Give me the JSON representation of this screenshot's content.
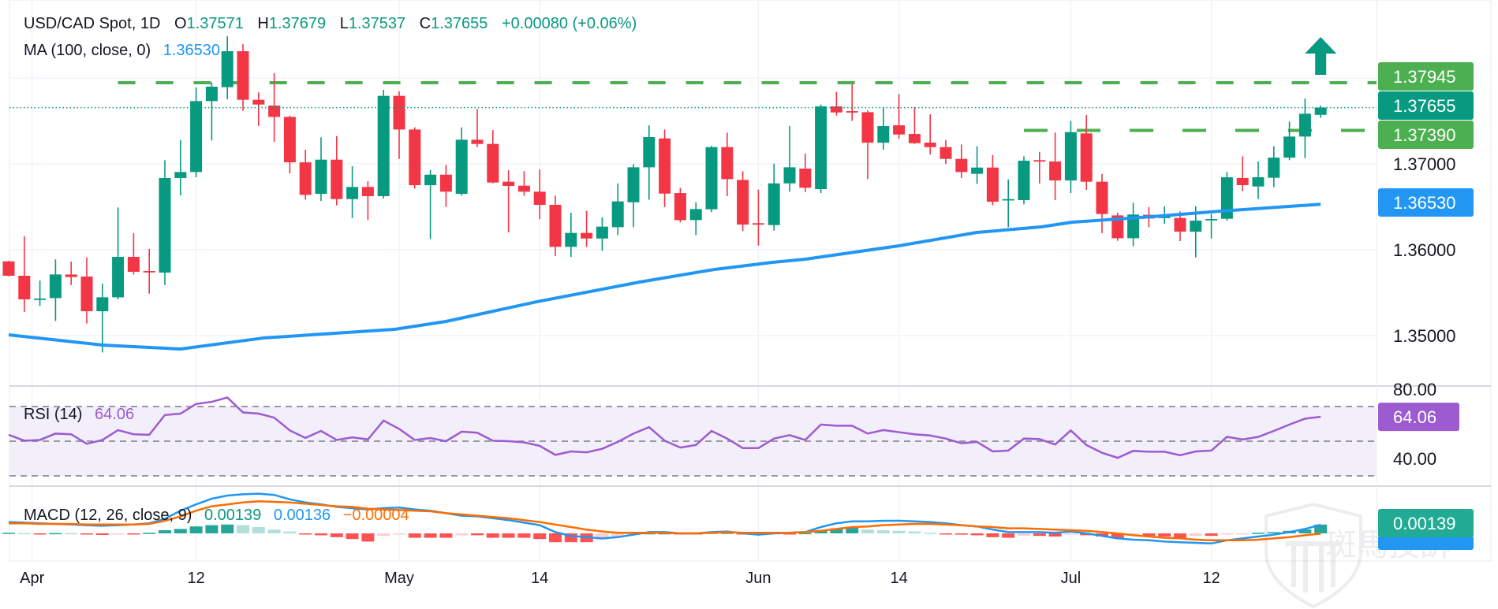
{
  "header": {
    "symbol": "USD/CAD Spot, 1D",
    "o_label": "O",
    "o_value": "1.37571",
    "h_label": "H",
    "h_value": "1.37679",
    "l_label": "L",
    "l_value": "1.37537",
    "c_label": "C",
    "c_value": "1.37655",
    "change": "+0.00080 (+0.06%)",
    "ma_label": "MA (100, close, 0)",
    "ma_value": "1.36530"
  },
  "colors": {
    "up": "#089981",
    "down": "#f23645",
    "ma": "#2196f3",
    "level": "#4caf50",
    "rsi": "#9c5bd0",
    "macd": "#2196f3",
    "signal": "#ff6d00",
    "hist_up_strong": "#26a69a",
    "hist_up_weak": "#b2dfdb",
    "hist_down_strong": "#ff5252",
    "hist_down_weak": "#ffcdd2"
  },
  "chart_data": [
    {
      "type": "candlestick",
      "title": "USD/CAD Spot, 1D",
      "ylim": [
        1.345,
        1.387
      ],
      "yticks": [
        "1.37000",
        "1.36000",
        "1.35000"
      ],
      "ytick_values": [
        1.37,
        1.36,
        1.35
      ],
      "xticks": [
        {
          "label": "Apr",
          "index": 1.5
        },
        {
          "label": "12",
          "index": 12
        },
        {
          "label": "May",
          "index": 25
        },
        {
          "label": "14",
          "index": 34
        },
        {
          "label": "Jun",
          "index": 48
        },
        {
          "label": "14",
          "index": 57
        },
        {
          "label": "Jul",
          "index": 68
        },
        {
          "label": "12",
          "index": 77
        }
      ],
      "ohlc": [
        [
          1.35865,
          1.3587,
          1.3569,
          1.35697
        ],
        [
          1.35697,
          1.36156,
          1.35275,
          1.35422
        ],
        [
          1.35425,
          1.35642,
          1.35345,
          1.35432
        ],
        [
          1.35437,
          1.35887,
          1.35171,
          1.35712
        ],
        [
          1.35712,
          1.35862,
          1.3559,
          1.35682
        ],
        [
          1.35688,
          1.35911,
          1.35141,
          1.35284
        ],
        [
          1.35284,
          1.35605,
          1.34804,
          1.35446
        ],
        [
          1.35446,
          1.36492,
          1.35422,
          1.35917
        ],
        [
          1.35917,
          1.36192,
          1.35712,
          1.35743
        ],
        [
          1.35752,
          1.36009,
          1.35489,
          1.35743
        ],
        [
          1.35734,
          1.37043,
          1.3559,
          1.36835
        ],
        [
          1.36835,
          1.37278,
          1.36633,
          1.36905
        ],
        [
          1.36905,
          1.3789,
          1.36844,
          1.37731
        ],
        [
          1.37731,
          1.37945,
          1.37272,
          1.37899
        ],
        [
          1.37893,
          1.38486,
          1.37752,
          1.38312
        ],
        [
          1.38312,
          1.38394,
          1.37617,
          1.37746
        ],
        [
          1.37746,
          1.37832,
          1.3744,
          1.37691
        ],
        [
          1.37679,
          1.38058,
          1.37257,
          1.37547
        ],
        [
          1.37547,
          1.3756,
          1.3689,
          1.37018
        ],
        [
          1.37018,
          1.37165,
          1.36584,
          1.36639
        ],
        [
          1.36651,
          1.37309,
          1.36569,
          1.37049
        ],
        [
          1.37049,
          1.37324,
          1.36517,
          1.3659
        ],
        [
          1.3659,
          1.36972,
          1.3637,
          1.36731
        ],
        [
          1.36731,
          1.36798,
          1.36345,
          1.36624
        ],
        [
          1.36624,
          1.37862,
          1.36596,
          1.37792
        ],
        [
          1.37792,
          1.37844,
          1.37058,
          1.374
        ],
        [
          1.374,
          1.37425,
          1.36712,
          1.36752
        ],
        [
          1.36752,
          1.36929,
          1.36125,
          1.36874
        ],
        [
          1.36874,
          1.36988,
          1.36498,
          1.36676
        ],
        [
          1.36651,
          1.37425,
          1.3663,
          1.37281
        ],
        [
          1.37281,
          1.37639,
          1.37195,
          1.37232
        ],
        [
          1.37232,
          1.37394,
          1.36774,
          1.36783
        ],
        [
          1.36792,
          1.36926,
          1.36202,
          1.36743
        ],
        [
          1.36746,
          1.36914,
          1.3663,
          1.36676
        ],
        [
          1.36676,
          1.36935,
          1.36355,
          1.36523
        ],
        [
          1.36523,
          1.3663,
          1.35926,
          1.36034
        ],
        [
          1.36034,
          1.36431,
          1.35917,
          1.36196
        ],
        [
          1.36196,
          1.36452,
          1.36034,
          1.36131
        ],
        [
          1.36131,
          1.36376,
          1.35988,
          1.36269
        ],
        [
          1.36263,
          1.36773,
          1.36171,
          1.36563
        ],
        [
          1.36553,
          1.36997,
          1.36263,
          1.3696
        ],
        [
          1.3696,
          1.37449,
          1.36584,
          1.37312
        ],
        [
          1.37296,
          1.374,
          1.36498,
          1.36654
        ],
        [
          1.3666,
          1.36721,
          1.36318,
          1.36345
        ],
        [
          1.36345,
          1.36553,
          1.36171,
          1.36474
        ],
        [
          1.36471,
          1.37211,
          1.36437,
          1.37195
        ],
        [
          1.37195,
          1.37364,
          1.36624,
          1.36822
        ],
        [
          1.36813,
          1.36914,
          1.36217,
          1.36293
        ],
        [
          1.36309,
          1.367,
          1.36049,
          1.36299
        ],
        [
          1.36287,
          1.37003,
          1.36223,
          1.36773
        ],
        [
          1.36773,
          1.3744,
          1.36676,
          1.3696
        ],
        [
          1.36945,
          1.37119,
          1.3667,
          1.36722
        ],
        [
          1.36706,
          1.37691,
          1.3666,
          1.37669
        ],
        [
          1.37669,
          1.37838,
          1.37563,
          1.37599
        ],
        [
          1.37614,
          1.37929,
          1.37501,
          1.37605
        ],
        [
          1.37602,
          1.37624,
          1.36822,
          1.37247
        ],
        [
          1.37247,
          1.37654,
          1.37165,
          1.3744
        ],
        [
          1.37449,
          1.37813,
          1.37293,
          1.37342
        ],
        [
          1.37348,
          1.3766,
          1.37232,
          1.37241
        ],
        [
          1.37247,
          1.37578,
          1.3711,
          1.37195
        ],
        [
          1.37195,
          1.37278,
          1.36997,
          1.37058
        ],
        [
          1.37058,
          1.37226,
          1.36835,
          1.36905
        ],
        [
          1.36884,
          1.37205,
          1.36767,
          1.36957
        ],
        [
          1.36957,
          1.37104,
          1.36517,
          1.36559
        ],
        [
          1.36584,
          1.36819,
          1.36263,
          1.3659
        ],
        [
          1.36578,
          1.37088,
          1.36529,
          1.37037
        ],
        [
          1.37043,
          1.3714,
          1.36773,
          1.37034
        ],
        [
          1.37028,
          1.37364,
          1.36578,
          1.36807
        ],
        [
          1.36807,
          1.37501,
          1.3666,
          1.3737
        ],
        [
          1.37355,
          1.37569,
          1.36697,
          1.36792
        ],
        [
          1.36792,
          1.36884,
          1.36193,
          1.36416
        ],
        [
          1.364,
          1.36431,
          1.36104,
          1.36134
        ],
        [
          1.36134,
          1.36547,
          1.3604,
          1.3641
        ],
        [
          1.36407,
          1.36498,
          1.36263,
          1.36364
        ],
        [
          1.36379,
          1.36507,
          1.36303,
          1.36385
        ],
        [
          1.3637,
          1.36446,
          1.36101,
          1.36211
        ],
        [
          1.36211,
          1.36507,
          1.35911,
          1.36339
        ],
        [
          1.36345,
          1.36416,
          1.36131,
          1.36358
        ],
        [
          1.36361,
          1.36905,
          1.36339,
          1.36844
        ],
        [
          1.36835,
          1.37088,
          1.36682,
          1.36752
        ],
        [
          1.36737,
          1.37027,
          1.3659,
          1.36844
        ],
        [
          1.36838,
          1.37205,
          1.36728,
          1.37073
        ],
        [
          1.37073,
          1.37492,
          1.37043,
          1.37318
        ],
        [
          1.37318,
          1.37761,
          1.37067,
          1.37584
        ],
        [
          1.37571,
          1.37679,
          1.37537,
          1.37655
        ]
      ],
      "ma_100": [
        [
          0,
          1.35009
        ],
        [
          6,
          1.3489
        ],
        [
          11,
          1.34844
        ],
        [
          16.3,
          1.34972
        ],
        [
          24.7,
          1.35073
        ],
        [
          28,
          1.35165
        ],
        [
          33.8,
          1.35394
        ],
        [
          40.4,
          1.35624
        ],
        [
          45.2,
          1.35771
        ],
        [
          48.9,
          1.35853
        ],
        [
          51,
          1.3589
        ],
        [
          57,
          1.36046
        ],
        [
          62,
          1.36202
        ],
        [
          66.1,
          1.36266
        ],
        [
          68.1,
          1.36321
        ],
        [
          73.2,
          1.36385
        ],
        [
          77.6,
          1.3645
        ],
        [
          84,
          1.3653
        ]
      ],
      "levels": [
        {
          "label": "1.37945",
          "value": 1.37945,
          "from_index": 7,
          "style": "dashed"
        },
        {
          "label": "1.37390",
          "value": 1.3739,
          "from_index": 65,
          "style": "dashed"
        }
      ],
      "last_price": {
        "label": "1.37655",
        "value": 1.37655
      },
      "ma_label": {
        "label": "1.36530",
        "value": 1.3653
      },
      "annotation": {
        "type": "up-arrow",
        "index": 84
      }
    },
    {
      "type": "line",
      "title": "RSI (14)",
      "value_label": "64.06",
      "ylim": [
        25,
        82
      ],
      "yticks": [
        "80.00",
        "40.00"
      ],
      "ytick_values": [
        80,
        40
      ],
      "bands": [
        70,
        50,
        30
      ],
      "values": [
        53.7,
        50.3,
        50.7,
        54.4,
        54,
        48.5,
        50.7,
        56.4,
        54,
        53.7,
        65.1,
        65.9,
        71.5,
        72.7,
        75.2,
        66.6,
        65.9,
        63.6,
        56.2,
        51.9,
        55.9,
        50.7,
        52.2,
        51,
        61.9,
        57.1,
        50.7,
        51.8,
        50,
        55.5,
        54.9,
        50.3,
        50,
        49.3,
        47.3,
        42.1,
        44.1,
        43.6,
        45.6,
        49.6,
        54.4,
        58.1,
        50.3,
        46.3,
        47.8,
        55.9,
        51.5,
        46,
        46,
        51.5,
        53.5,
        50.7,
        59.6,
        58.9,
        58.9,
        54.4,
        56.4,
        55.2,
        54,
        53.3,
        51.5,
        48.8,
        49.6,
        44.1,
        44.6,
        51.5,
        51.2,
        48.1,
        56.2,
        47.8,
        43.3,
        40.4,
        44.4,
        43.9,
        43.9,
        41.9,
        44.1,
        44.6,
        52.5,
        51,
        52.5,
        55.9,
        59.6,
        63,
        64.06
      ]
    },
    {
      "type": "bar+line",
      "title": "MACD (12, 26, close, 9)",
      "hist_label": "0.00139",
      "macd_label": "0.00136",
      "signal_label": "−0.00004",
      "axis_box_label": "0.00139",
      "units": "1e-4",
      "macd": [
        18,
        17,
        16,
        15,
        14,
        13,
        12,
        13,
        14,
        16,
        23,
        36,
        46,
        55,
        60,
        62,
        63,
        61,
        54,
        49,
        46,
        42,
        40,
        38,
        40,
        41,
        38,
        36,
        32,
        28,
        27,
        24,
        21,
        17,
        13,
        2,
        -4,
        -6,
        -8,
        -6,
        -2,
        2,
        2,
        0,
        0,
        2,
        3,
        0,
        -2,
        0,
        1,
        2,
        10,
        16,
        19,
        19,
        20,
        20,
        19,
        18,
        16,
        13,
        11,
        6,
        2,
        2,
        2,
        1,
        3,
        0,
        -4,
        -8,
        -10,
        -11,
        -13,
        -14,
        -15,
        -16,
        -11,
        -8,
        -5,
        -2,
        2,
        7,
        13.6
      ],
      "signal": [
        16,
        16,
        15,
        15,
        15,
        14,
        14,
        14,
        14,
        15,
        20,
        27,
        36,
        43,
        46,
        49,
        51,
        50,
        49,
        47,
        45,
        43,
        42,
        39,
        38,
        37,
        36,
        35,
        32,
        30,
        28,
        26,
        24,
        21,
        18,
        14,
        10,
        6,
        3,
        1,
        1,
        1,
        1,
        0,
        0,
        1,
        2,
        1,
        1,
        1,
        1,
        2,
        4,
        7,
        10,
        11,
        13,
        14,
        15,
        15,
        14,
        13,
        11,
        10,
        8,
        8,
        7,
        6,
        5,
        4,
        2,
        0,
        -3,
        -5,
        -7,
        -8,
        -10,
        -11,
        -11,
        -11,
        -10,
        -8,
        -6,
        -3,
        -0.4
      ],
      "histogram": [
        1,
        0.5,
        -0.5,
        0.5,
        0.3,
        -1.5,
        -2.5,
        -0.5,
        -0.5,
        1,
        5,
        7,
        11,
        13,
        14,
        13,
        10,
        6,
        3,
        -0.5,
        -3,
        -6,
        -9,
        -13,
        -4,
        -2,
        -7,
        -7,
        -7,
        -3,
        -3,
        -7,
        -7,
        -7,
        -9,
        -14,
        -14,
        -14,
        -10,
        -6,
        -1,
        0.3,
        0.3,
        -1,
        -1,
        1,
        1,
        -1,
        -1,
        -0.5,
        -0.5,
        0.5,
        5,
        8,
        9,
        6,
        5,
        4,
        3,
        1,
        -0.5,
        -2,
        -3,
        -6,
        -7,
        -4,
        -4,
        -5,
        -1,
        -3,
        -5,
        -8,
        -3,
        -4,
        -5,
        -8,
        -4,
        -4,
        -2,
        -1,
        1,
        2,
        4,
        6,
        13.9
      ]
    }
  ],
  "watermark": {
    "brand": "ZEBRA RANK",
    "text": "斑馬投訴"
  }
}
